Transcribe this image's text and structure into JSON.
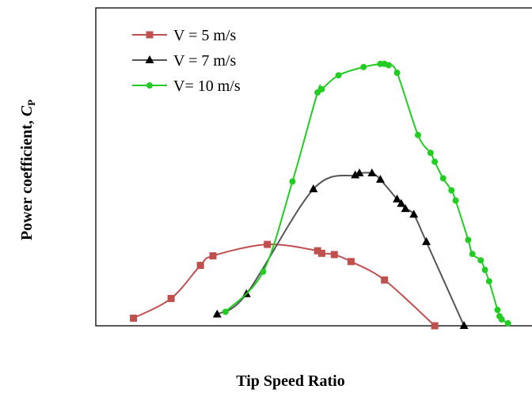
{
  "chart_data": {
    "type": "line",
    "title": "",
    "xlabel": "Tip Speed Ratio",
    "ylabel_main": "Power coefficient, ",
    "ylabel_symbol": "C",
    "ylabel_sub": "P",
    "xlim": [
      0,
      10.5
    ],
    "ylim": [
      0,
      0.5
    ],
    "grid": false,
    "legend_position": "top-left",
    "series": [
      {
        "name": "V = 5 m/s",
        "color": "#c0504d",
        "marker": "square",
        "x": [
          0.9,
          1.8,
          2.5,
          2.8,
          4.1,
          5.3,
          5.4,
          5.7,
          6.1,
          6.9,
          8.1
        ],
        "y": [
          0.012,
          0.043,
          0.095,
          0.11,
          0.128,
          0.118,
          0.114,
          0.112,
          0.101,
          0.072,
          0.0
        ]
      },
      {
        "name": "V = 7 m/s",
        "color": "#000000",
        "marker": "triangle",
        "x": [
          2.9,
          3.6,
          5.2,
          6.2,
          6.3,
          6.6,
          6.8,
          7.2,
          7.3,
          7.4,
          7.6,
          7.9,
          8.8
        ],
        "y": [
          0.018,
          0.05,
          0.215,
          0.237,
          0.24,
          0.24,
          0.23,
          0.199,
          0.192,
          0.184,
          0.175,
          0.132,
          0.0
        ]
      },
      {
        "name": "V= 10 m/s",
        "color": "#22cc22",
        "marker": "circle",
        "x": [
          3.1,
          4.0,
          4.7,
          5.3,
          5.4,
          5.8,
          6.4,
          6.8,
          6.9,
          7.0,
          7.2,
          7.7,
          8.0,
          8.1,
          8.3,
          8.5,
          8.6,
          8.9,
          9.0,
          9.2,
          9.3,
          9.4,
          9.6,
          9.65,
          9.7,
          9.85
        ],
        "y": [
          0.022,
          0.085,
          0.227,
          0.367,
          0.372,
          0.394,
          0.407,
          0.412,
          0.412,
          0.41,
          0.398,
          0.3,
          0.272,
          0.258,
          0.232,
          0.213,
          0.197,
          0.135,
          0.113,
          0.103,
          0.088,
          0.07,
          0.025,
          0.015,
          0.01,
          0.004
        ]
      }
    ]
  }
}
